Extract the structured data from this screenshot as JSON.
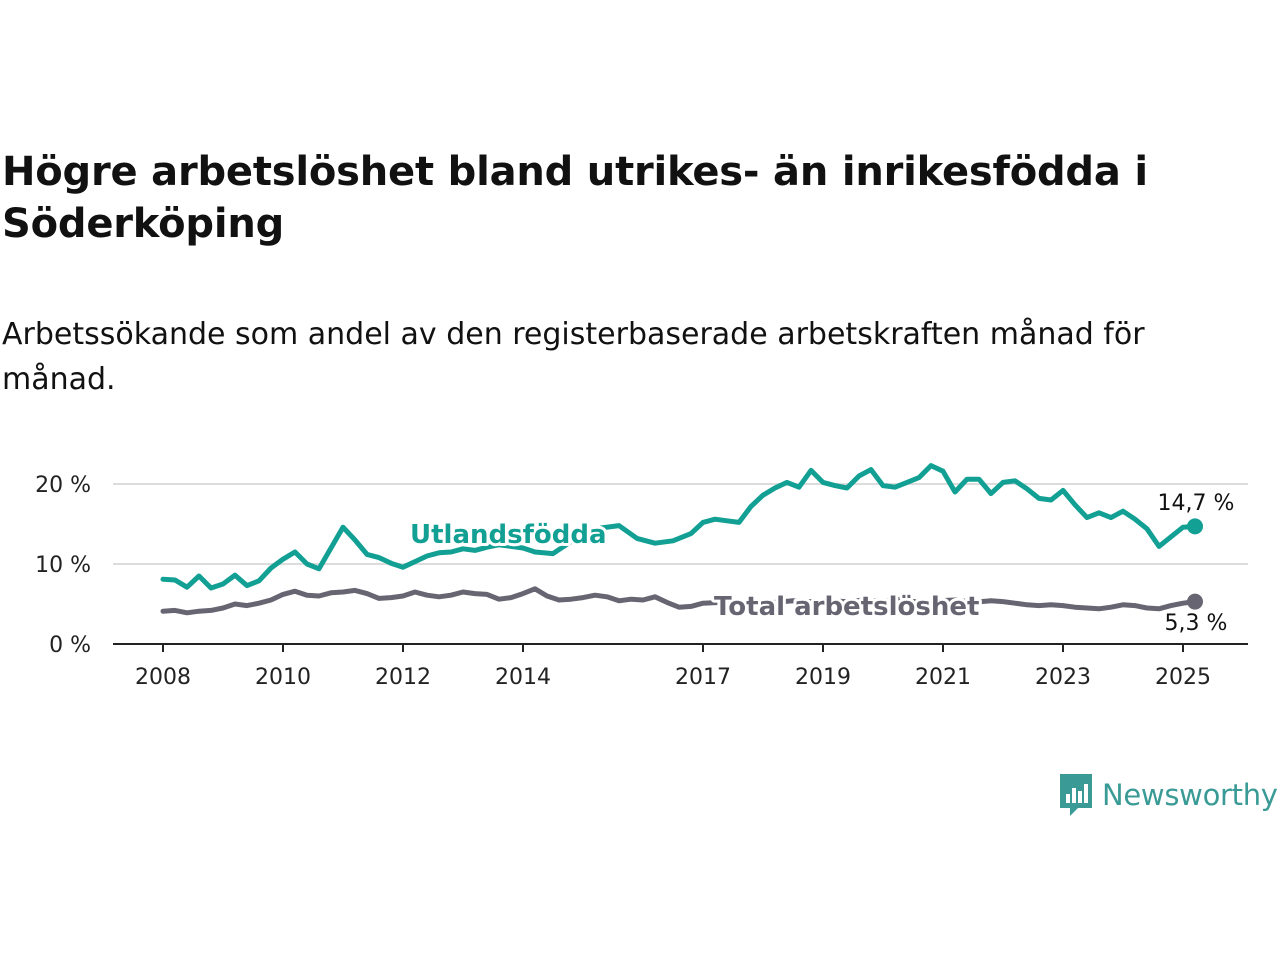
{
  "title": "Högre arbetslöshet bland utrikes- än inrikesfödda i Söderköping",
  "subtitle": "Arbetssökande som andel av den registerbaserade arbetskraften månad för månad.",
  "brand": {
    "name": "Newsworthy",
    "color": "#3a9b96",
    "icon": "bar-chart-speech-bubble-icon"
  },
  "chart_data": {
    "type": "line",
    "x_ticks": [
      "2008",
      "2010",
      "2012",
      "2014",
      "2017",
      "2019",
      "2021",
      "2023",
      "2025"
    ],
    "y_ticks": [
      "0 %",
      "10 %",
      "20 %"
    ],
    "ylim": [
      0,
      25
    ],
    "xlim": [
      2007.6,
      2026.1
    ],
    "grid": true,
    "series": [
      {
        "name": "Utlandsfödda",
        "color": "#11a093",
        "end_label": "14,7 %",
        "points": [
          [
            2008.0,
            8.1
          ],
          [
            2008.2,
            8.0
          ],
          [
            2008.4,
            7.1
          ],
          [
            2008.6,
            8.5
          ],
          [
            2008.8,
            7.0
          ],
          [
            2009.0,
            7.5
          ],
          [
            2009.2,
            8.6
          ],
          [
            2009.4,
            7.3
          ],
          [
            2009.6,
            7.9
          ],
          [
            2009.8,
            9.5
          ],
          [
            2010.0,
            10.6
          ],
          [
            2010.2,
            11.5
          ],
          [
            2010.4,
            10.0
          ],
          [
            2010.6,
            9.4
          ],
          [
            2010.8,
            12.0
          ],
          [
            2011.0,
            14.6
          ],
          [
            2011.2,
            13.0
          ],
          [
            2011.4,
            11.2
          ],
          [
            2011.6,
            10.8
          ],
          [
            2011.8,
            10.1
          ],
          [
            2012.0,
            9.6
          ],
          [
            2012.2,
            10.3
          ],
          [
            2012.4,
            11.0
          ],
          [
            2012.6,
            11.4
          ],
          [
            2012.8,
            11.5
          ],
          [
            2013.0,
            11.9
          ],
          [
            2013.2,
            11.7
          ],
          [
            2013.4,
            12.1
          ],
          [
            2013.6,
            12.4
          ],
          [
            2013.8,
            12.2
          ],
          [
            2014.0,
            12.0
          ],
          [
            2014.2,
            11.5
          ],
          [
            2014.5,
            11.3
          ],
          [
            2014.8,
            12.8
          ],
          [
            2015.0,
            13.5
          ],
          [
            2015.3,
            14.5
          ],
          [
            2015.6,
            14.8
          ],
          [
            2015.9,
            13.2
          ],
          [
            2016.2,
            12.6
          ],
          [
            2016.5,
            12.9
          ],
          [
            2016.8,
            13.8
          ],
          [
            2017.0,
            15.2
          ],
          [
            2017.2,
            15.6
          ],
          [
            2017.4,
            15.4
          ],
          [
            2017.6,
            15.2
          ],
          [
            2017.8,
            17.2
          ],
          [
            2018.0,
            18.6
          ],
          [
            2018.2,
            19.5
          ],
          [
            2018.4,
            20.2
          ],
          [
            2018.6,
            19.6
          ],
          [
            2018.8,
            21.7
          ],
          [
            2019.0,
            20.2
          ],
          [
            2019.2,
            19.8
          ],
          [
            2019.4,
            19.5
          ],
          [
            2019.6,
            21.0
          ],
          [
            2019.8,
            21.8
          ],
          [
            2020.0,
            19.8
          ],
          [
            2020.2,
            19.6
          ],
          [
            2020.4,
            20.2
          ],
          [
            2020.6,
            20.8
          ],
          [
            2020.8,
            22.3
          ],
          [
            2021.0,
            21.6
          ],
          [
            2021.2,
            19.0
          ],
          [
            2021.4,
            20.6
          ],
          [
            2021.6,
            20.6
          ],
          [
            2021.8,
            18.8
          ],
          [
            2022.0,
            20.2
          ],
          [
            2022.2,
            20.4
          ],
          [
            2022.4,
            19.4
          ],
          [
            2022.6,
            18.2
          ],
          [
            2022.8,
            18.0
          ],
          [
            2023.0,
            19.2
          ],
          [
            2023.2,
            17.4
          ],
          [
            2023.4,
            15.8
          ],
          [
            2023.6,
            16.4
          ],
          [
            2023.8,
            15.8
          ],
          [
            2024.0,
            16.6
          ],
          [
            2024.2,
            15.6
          ],
          [
            2024.4,
            14.4
          ],
          [
            2024.6,
            12.2
          ],
          [
            2024.8,
            13.4
          ],
          [
            2025.0,
            14.6
          ],
          [
            2025.2,
            14.7
          ]
        ]
      },
      {
        "name": "Total arbetslöshet",
        "color": "#676571",
        "end_label": "5,3 %",
        "points": [
          [
            2008.0,
            4.1
          ],
          [
            2008.2,
            4.2
          ],
          [
            2008.4,
            3.9
          ],
          [
            2008.6,
            4.1
          ],
          [
            2008.8,
            4.2
          ],
          [
            2009.0,
            4.5
          ],
          [
            2009.2,
            5.0
          ],
          [
            2009.4,
            4.8
          ],
          [
            2009.6,
            5.1
          ],
          [
            2009.8,
            5.5
          ],
          [
            2010.0,
            6.2
          ],
          [
            2010.2,
            6.6
          ],
          [
            2010.4,
            6.1
          ],
          [
            2010.6,
            6.0
          ],
          [
            2010.8,
            6.4
          ],
          [
            2011.0,
            6.5
          ],
          [
            2011.2,
            6.7
          ],
          [
            2011.4,
            6.3
          ],
          [
            2011.6,
            5.7
          ],
          [
            2011.8,
            5.8
          ],
          [
            2012.0,
            6.0
          ],
          [
            2012.2,
            6.5
          ],
          [
            2012.4,
            6.1
          ],
          [
            2012.6,
            5.9
          ],
          [
            2012.8,
            6.1
          ],
          [
            2013.0,
            6.5
          ],
          [
            2013.2,
            6.3
          ],
          [
            2013.4,
            6.2
          ],
          [
            2013.6,
            5.6
          ],
          [
            2013.8,
            5.8
          ],
          [
            2014.0,
            6.3
          ],
          [
            2014.2,
            6.9
          ],
          [
            2014.4,
            6.0
          ],
          [
            2014.6,
            5.5
          ],
          [
            2014.8,
            5.6
          ],
          [
            2015.0,
            5.8
          ],
          [
            2015.2,
            6.1
          ],
          [
            2015.4,
            5.9
          ],
          [
            2015.6,
            5.4
          ],
          [
            2015.8,
            5.6
          ],
          [
            2016.0,
            5.5
          ],
          [
            2016.2,
            5.9
          ],
          [
            2016.4,
            5.2
          ],
          [
            2016.6,
            4.6
          ],
          [
            2016.8,
            4.7
          ],
          [
            2017.0,
            5.1
          ],
          [
            2017.3,
            5.2
          ],
          [
            2017.6,
            5.2
          ],
          [
            2017.9,
            5.3
          ],
          [
            2018.2,
            5.2
          ],
          [
            2018.5,
            5.4
          ],
          [
            2018.8,
            5.3
          ],
          [
            2019.1,
            5.4
          ],
          [
            2019.4,
            5.3
          ],
          [
            2019.7,
            5.5
          ],
          [
            2020.0,
            5.3
          ],
          [
            2020.3,
            5.6
          ],
          [
            2020.6,
            5.2
          ],
          [
            2020.9,
            5.4
          ],
          [
            2021.2,
            5.5
          ],
          [
            2021.5,
            5.2
          ],
          [
            2021.8,
            5.4
          ],
          [
            2022.0,
            5.3
          ],
          [
            2022.2,
            5.1
          ],
          [
            2022.4,
            4.9
          ],
          [
            2022.6,
            4.8
          ],
          [
            2022.8,
            4.9
          ],
          [
            2023.0,
            4.8
          ],
          [
            2023.2,
            4.6
          ],
          [
            2023.4,
            4.5
          ],
          [
            2023.6,
            4.4
          ],
          [
            2023.8,
            4.6
          ],
          [
            2024.0,
            4.9
          ],
          [
            2024.2,
            4.8
          ],
          [
            2024.4,
            4.5
          ],
          [
            2024.6,
            4.4
          ],
          [
            2024.8,
            4.8
          ],
          [
            2025.0,
            5.1
          ],
          [
            2025.2,
            5.3
          ]
        ]
      }
    ]
  }
}
